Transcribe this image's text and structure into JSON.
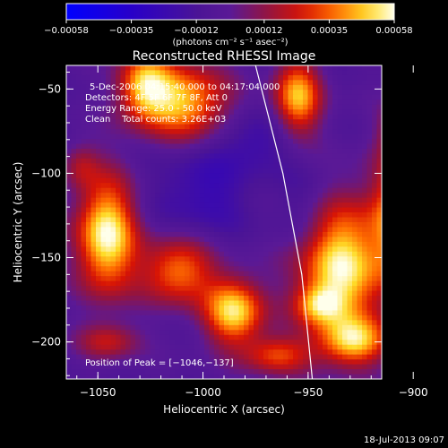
{
  "chart_data": {
    "type": "heatmap",
    "title": "Reconstructed RHESSI Image",
    "xlabel": "Heliocentric X (arcsec)",
    "ylabel": "Heliocentric Y (arcsec)",
    "xlim": [
      -1065,
      -915
    ],
    "ylim": [
      -222,
      -36
    ],
    "x_ticks": [
      -1050,
      -1000,
      -950,
      -900
    ],
    "x_tick_labels": [
      "−1050",
      "−1000",
      "−950",
      "−900"
    ],
    "y_ticks": [
      -50,
      -100,
      -150,
      -200
    ],
    "y_tick_labels": [
      "−50",
      "−100",
      "−150",
      "−200"
    ],
    "colorbar": {
      "range": [
        -0.00058,
        0.00058
      ],
      "ticks": [
        -0.00058,
        -0.00035,
        -0.00012,
        0.00012,
        0.00035,
        0.00058
      ],
      "tick_labels": [
        "−0.00058",
        "−0.00035",
        "−0.00012",
        "0.00012",
        "0.00035",
        "0.00058"
      ],
      "units": "(photons cm⁻² s⁻¹ asec⁻²)"
    },
    "info_lines": [
      "5-Dec-2006 04:15:40.000 to 04:17:04.000",
      "Detectors: 4F 5F 6F 7F 8F, Att 0",
      "Energy Range: 25.0 - 50.0 keV",
      "Clean    Total counts: 3.26E+03"
    ],
    "peak_label": "Position of Peak = [−1046,−137]",
    "peak": [
      -1046,
      -137
    ],
    "limb_curve": [
      [
        -975,
        -36
      ],
      [
        -962,
        -100
      ],
      [
        -953,
        -160
      ],
      [
        -948,
        -222
      ]
    ],
    "sources": [
      {
        "x": -1046,
        "y": -137,
        "sx": 10,
        "sy": 24,
        "a": 1.0
      },
      {
        "x": -1028,
        "y": -48,
        "sx": 9,
        "sy": 15,
        "a": 0.75
      },
      {
        "x": -1008,
        "y": -58,
        "sx": 14,
        "sy": 16,
        "a": 0.8
      },
      {
        "x": -1012,
        "y": -158,
        "sx": 12,
        "sy": 14,
        "a": 0.7
      },
      {
        "x": -985,
        "y": -182,
        "sx": 10,
        "sy": 14,
        "a": 0.9
      },
      {
        "x": -955,
        "y": -55,
        "sx": 8,
        "sy": 16,
        "a": 0.8
      },
      {
        "x": -905,
        "y": -75,
        "sx": 7,
        "sy": 10,
        "a": 0.45
      },
      {
        "x": -935,
        "y": -155,
        "sx": 14,
        "sy": 28,
        "a": 0.95
      },
      {
        "x": -905,
        "y": -128,
        "sx": 10,
        "sy": 30,
        "a": 0.85
      },
      {
        "x": -965,
        "y": -208,
        "sx": 11,
        "sy": 8,
        "a": 0.55
      },
      {
        "x": -928,
        "y": -200,
        "sx": 12,
        "sy": 10,
        "a": 0.7
      },
      {
        "x": -1045,
        "y": -200,
        "sx": 10,
        "sy": 8,
        "a": 0.4
      },
      {
        "x": -945,
        "y": -178,
        "sx": 8,
        "sy": 8,
        "a": 0.5
      },
      {
        "x": -1058,
        "y": -95,
        "sx": 6,
        "sy": 10,
        "a": 0.3
      },
      {
        "x": -1000,
        "y": -110,
        "sx": 16,
        "sy": 20,
        "a": -0.3
      },
      {
        "x": -975,
        "y": -80,
        "sx": 12,
        "sy": 12,
        "a": -0.25
      },
      {
        "x": -950,
        "y": -120,
        "sx": 10,
        "sy": 18,
        "a": -0.2
      }
    ]
  },
  "footer": {
    "timestamp": "18-Jul-2013 09:07"
  }
}
